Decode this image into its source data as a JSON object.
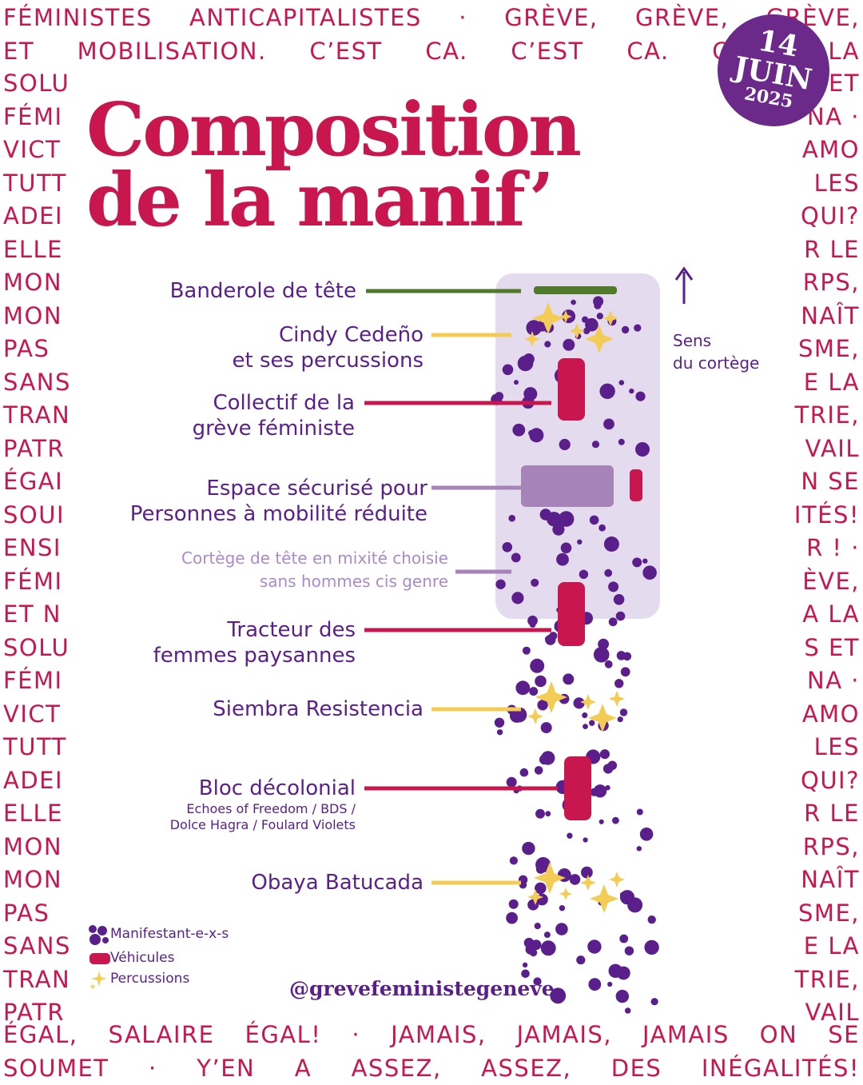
{
  "border": {
    "top": [
      "FÉMINISTES ANTICAPITALISTES · GRÈVE, GRÈVE, GRÈVE,",
      "ET MOBILISATION. C’EST CA. C’EST CA. C’EST LA"
    ],
    "left": [
      "SOLU",
      "FÉMI",
      "VICT",
      "TUTT",
      "ADEI",
      "ELLE",
      "MON",
      "MON",
      "PAS",
      "SANS",
      "TRAN",
      "PATR",
      "ÉGAI",
      "SOUI",
      "ENSI",
      "FÉMI",
      "ET N",
      "SOLU",
      "FÉMI",
      "VICT",
      "TUTT",
      "ADEI",
      "ELLE",
      "MON",
      "MON",
      "PAS",
      "SANS",
      "TRAN",
      "PATR"
    ],
    "right": [
      "ET",
      "NA ·",
      "AMO",
      "LES",
      "QUI?",
      "R LE",
      "RPS,",
      "NAÎT",
      "SME,",
      "E LA",
      "TRIE,",
      "VAIL",
      "N SE",
      "ITÉS!",
      "R ! ·",
      "ÈVE,",
      "A LA",
      "S ET",
      "NA ·",
      "AMO",
      "LES",
      "QUI?",
      "R LE",
      "RPS,",
      "NAÎT",
      "SME,",
      "E LA",
      "TRIE,",
      "VAIL"
    ],
    "bottom": [
      "ÉGAL, SALAIRE ÉGAL! · JAMAIS, JAMAIS, JAMAIS ON SE",
      "SOUMET · Y’EN A ASSEZ, ASSEZ, DES INÉGALITÉS!"
    ]
  },
  "badge": {
    "day": "14",
    "month": "JUIN",
    "year": "2025"
  },
  "title": {
    "line1": "Composition",
    "line2": "de la manif’"
  },
  "labels": {
    "banderole": "Banderole de tête",
    "cindy_1": "Cindy Cedeño",
    "cindy_2": "et ses percussions",
    "collectif_1": "Collectif de la",
    "collectif_2": "grève féministe",
    "espace_1": "Espace sécurisé pour",
    "espace_2": "Personnes à mobilité réduite",
    "cortege_1": "Cortège de tête en mixité choisie",
    "cortege_2": "sans hommes cis genre",
    "tracteur_1": "Tracteur des",
    "tracteur_2": "femmes paysannes",
    "siembra": "Siembra Resistencia",
    "bloc": "Bloc décolonial",
    "bloc_sub_1": "Echoes of Freedom / BDS /",
    "bloc_sub_2": "Dolce Hagra / Foulard Violets",
    "obaya": "Obaya Batucada"
  },
  "direction": {
    "line1": "Sens",
    "line2": "du cortège"
  },
  "legend": {
    "manifestants": "Manifestant-e-x-s",
    "vehicules": "Véhicules",
    "percussions": "Percussions"
  },
  "handle": "@grevefeministegeneve",
  "colors": {
    "crimson": "#c8174e",
    "purple": "#5a1f8a",
    "lavender": "#e4dcee",
    "mauve": "#a684b9",
    "gold": "#f3cc55",
    "green": "#4f7a2c",
    "badge": "#6b2a8a"
  }
}
